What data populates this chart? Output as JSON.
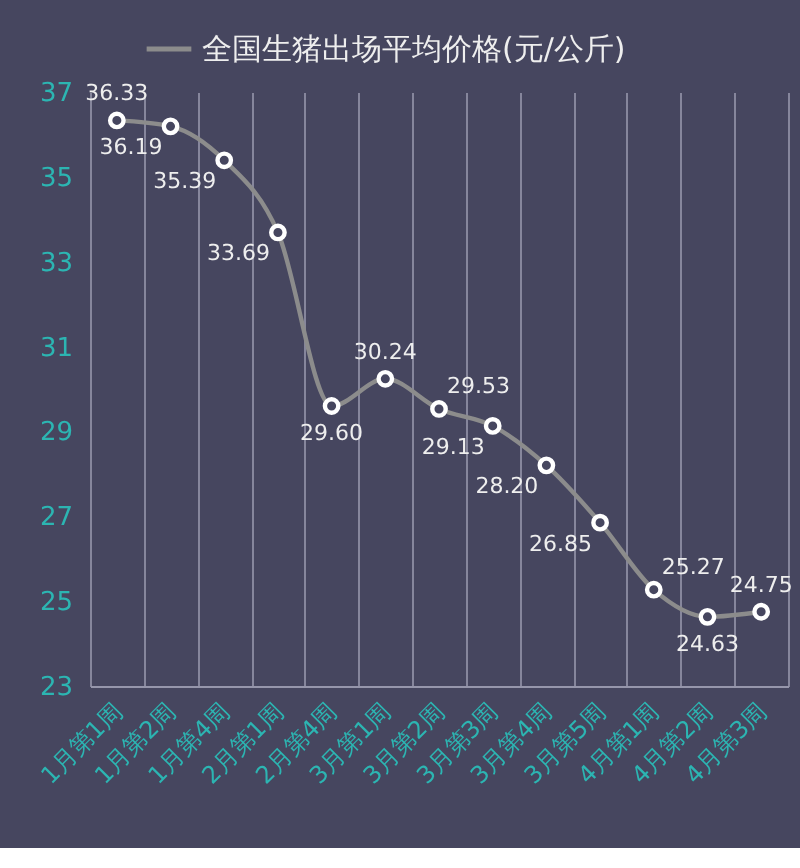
{
  "chart_data": {
    "type": "line",
    "categories": [
      "1月第1周",
      "1月第2周",
      "1月第4周",
      "2月第1周",
      "2月第4周",
      "3月第1周",
      "3月第2周",
      "3月第3周",
      "3月第4周",
      "3月第5周",
      "4月第1周",
      "4月第2周",
      "4月第3周"
    ],
    "series": [
      {
        "name": "全国生猪出场平均价格(元/公斤)",
        "color": "#8c8c8c",
        "values": [
          36.33,
          36.19,
          35.39,
          33.69,
          29.6,
          30.24,
          29.53,
          29.13,
          28.2,
          26.85,
          25.27,
          24.63,
          24.75
        ],
        "value_labels": [
          "36.33",
          "36.19",
          "35.39",
          "33.69",
          "29.60",
          "30.24",
          "29.53",
          "29.13",
          "28.20",
          "26.85",
          "25.27",
          "24.63",
          "24.75"
        ]
      }
    ],
    "ylim": [
      23,
      37
    ],
    "yticks": [
      23,
      25,
      27,
      29,
      31,
      33,
      35,
      37
    ],
    "grid": "x",
    "legend": "top",
    "marker": "circle",
    "line_style": "solid"
  }
}
